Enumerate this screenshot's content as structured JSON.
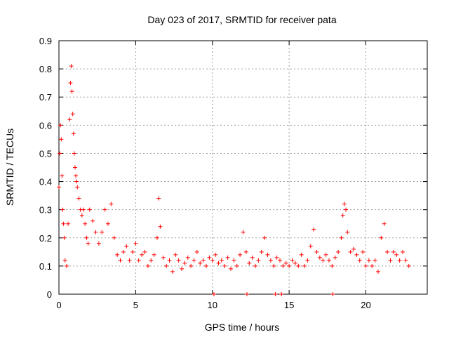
{
  "chart_data": {
    "type": "scatter",
    "title": "Day 023 of 2017, SRMTID for receiver pata",
    "xlabel": "GPS time / hours",
    "ylabel": "SRMTID / TECUs",
    "xlim": [
      0,
      24
    ],
    "ylim": [
      0,
      0.9
    ],
    "xticks": [
      0,
      5,
      10,
      15,
      20
    ],
    "xtick_labels": [
      "0",
      "5",
      "10",
      "15",
      "20"
    ],
    "yticks": [
      0,
      0.1,
      0.2,
      0.3,
      0.4,
      0.5,
      0.6,
      0.7,
      0.8,
      0.9
    ],
    "ytick_labels": [
      "0",
      "0.1",
      "0.2",
      "0.3",
      "0.4",
      "0.5",
      "0.6",
      "0.7",
      "0.8",
      "0.9"
    ],
    "grid": true,
    "marker": "plus",
    "color": "#ff0000",
    "series": [
      {
        "name": "SRMTID",
        "x": [
          0.0,
          0.05,
          0.1,
          0.15,
          0.2,
          0.25,
          0.3,
          0.35,
          0.4,
          0.5,
          0.6,
          0.7,
          0.75,
          0.8,
          0.85,
          0.9,
          0.95,
          1.0,
          1.05,
          1.1,
          1.15,
          1.2,
          1.3,
          1.4,
          1.5,
          1.6,
          1.7,
          1.8,
          1.9,
          2.0,
          2.2,
          2.4,
          2.6,
          2.8,
          3.0,
          3.2,
          3.4,
          3.6,
          3.8,
          4.0,
          4.2,
          4.4,
          4.6,
          4.8,
          5.0,
          5.2,
          5.4,
          5.6,
          5.8,
          6.0,
          6.2,
          6.4,
          6.5,
          6.6,
          6.8,
          7.0,
          7.2,
          7.4,
          7.6,
          7.8,
          8.0,
          8.2,
          8.4,
          8.6,
          8.8,
          9.0,
          9.2,
          9.4,
          9.6,
          9.8,
          10.0,
          10.1,
          10.2,
          10.4,
          10.6,
          10.8,
          11.0,
          11.2,
          11.4,
          11.6,
          11.8,
          12.0,
          12.2,
          12.25,
          12.4,
          12.6,
          12.8,
          13.0,
          13.2,
          13.4,
          13.6,
          13.8,
          14.0,
          14.1,
          14.2,
          14.4,
          14.5,
          14.6,
          14.8,
          15.0,
          15.2,
          15.4,
          15.6,
          15.8,
          16.0,
          16.2,
          16.4,
          16.6,
          16.8,
          17.0,
          17.2,
          17.4,
          17.6,
          17.8,
          17.85,
          18.0,
          18.2,
          18.4,
          18.5,
          18.6,
          18.7,
          18.8,
          19.0,
          19.2,
          19.4,
          19.6,
          19.8,
          20.0,
          20.2,
          20.4,
          20.6,
          20.8,
          21.0,
          21.2,
          21.4,
          21.6,
          21.8,
          22.0,
          22.2,
          22.4,
          22.6,
          22.8
        ],
        "y": [
          0.38,
          0.5,
          0.6,
          0.55,
          0.42,
          0.3,
          0.25,
          0.2,
          0.12,
          0.1,
          0.25,
          0.62,
          0.75,
          0.81,
          0.72,
          0.64,
          0.57,
          0.5,
          0.45,
          0.42,
          0.4,
          0.38,
          0.34,
          0.3,
          0.28,
          0.3,
          0.25,
          0.2,
          0.18,
          0.3,
          0.26,
          0.22,
          0.18,
          0.22,
          0.3,
          0.25,
          0.32,
          0.2,
          0.14,
          0.12,
          0.15,
          0.17,
          0.12,
          0.15,
          0.18,
          0.12,
          0.14,
          0.15,
          0.1,
          0.12,
          0.14,
          0.2,
          0.34,
          0.24,
          0.13,
          0.1,
          0.12,
          0.08,
          0.14,
          0.12,
          0.09,
          0.11,
          0.13,
          0.1,
          0.12,
          0.15,
          0.11,
          0.12,
          0.1,
          0.13,
          0.12,
          0.0,
          0.14,
          0.11,
          0.12,
          0.1,
          0.13,
          0.09,
          0.12,
          0.1,
          0.14,
          0.22,
          0.15,
          0.0,
          0.11,
          0.13,
          0.1,
          0.12,
          0.15,
          0.2,
          0.14,
          0.12,
          0.1,
          0.0,
          0.13,
          0.12,
          0.0,
          0.1,
          0.11,
          0.1,
          0.12,
          0.11,
          0.1,
          0.14,
          0.1,
          0.12,
          0.17,
          0.23,
          0.15,
          0.13,
          0.12,
          0.14,
          0.12,
          0.1,
          0.0,
          0.13,
          0.15,
          0.2,
          0.28,
          0.32,
          0.3,
          0.22,
          0.15,
          0.16,
          0.14,
          0.12,
          0.15,
          0.1,
          0.12,
          0.1,
          0.12,
          0.08,
          0.2,
          0.25,
          0.15,
          0.12,
          0.15,
          0.14,
          0.12,
          0.15,
          0.12,
          0.1
        ]
      }
    ]
  }
}
